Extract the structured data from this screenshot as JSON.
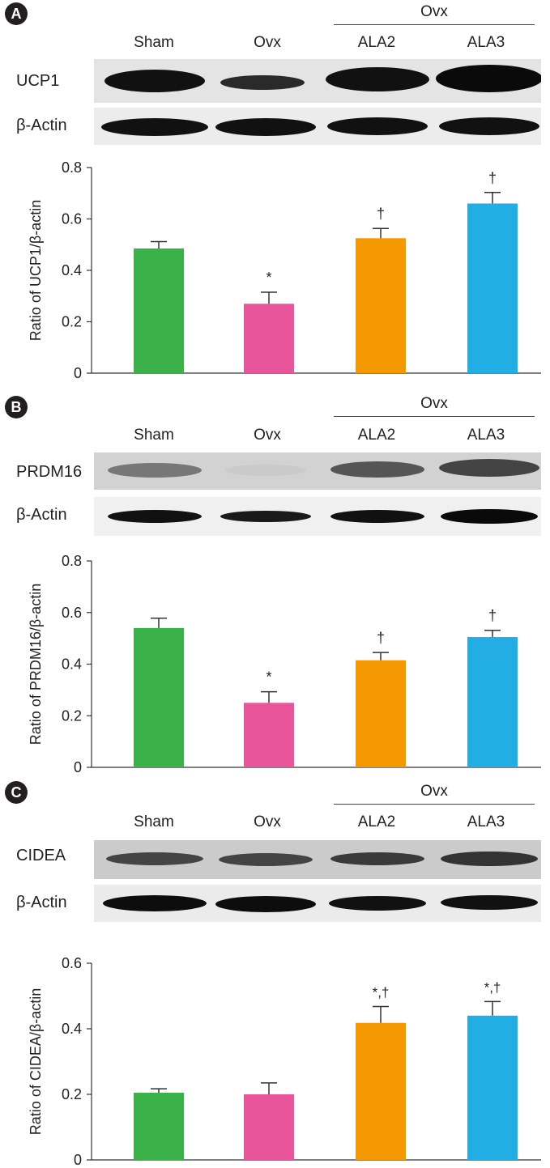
{
  "lanes": [
    "Sham",
    "Ovx",
    "ALA2",
    "ALA3"
  ],
  "ovx_group_label": "Ovx",
  "panels": [
    {
      "badge": "A",
      "blot_protein": "UCP1",
      "loading_control": "β-Actin",
      "ylabel": "Ratio of UCP1/β-actin"
    },
    {
      "badge": "B",
      "blot_protein": "PRDM16",
      "loading_control": "β-Actin",
      "ylabel": "Ratio of PRDM16/β-actin"
    },
    {
      "badge": "C",
      "blot_protein": "CIDEA",
      "loading_control": "β-Actin",
      "ylabel": "Ratio of CIDEA/β-actin"
    }
  ],
  "colors": {
    "sham": "#3bb14a",
    "ovx": "#e9559b",
    "ala2": "#f39800",
    "ala3": "#22aee5"
  },
  "chart_data": [
    {
      "type": "bar",
      "categories": [
        "Sham",
        "Ovx",
        "ALA2",
        "ALA3"
      ],
      "values": [
        0.485,
        0.27,
        0.525,
        0.66
      ],
      "errors": [
        0.027,
        0.045,
        0.038,
        0.043
      ],
      "annotations": [
        "",
        "*",
        "†",
        "†"
      ],
      "ylabel": "Ratio of UCP1/β-actin",
      "ylim": [
        0,
        0.8
      ],
      "yticks": [
        "0",
        "0.2",
        "0.4",
        "0.6",
        "0.8"
      ]
    },
    {
      "type": "bar",
      "categories": [
        "Sham",
        "Ovx",
        "ALA2",
        "ALA3"
      ],
      "values": [
        0.54,
        0.25,
        0.415,
        0.505
      ],
      "errors": [
        0.038,
        0.043,
        0.03,
        0.026
      ],
      "annotations": [
        "",
        "*",
        "†",
        "†"
      ],
      "ylabel": "Ratio of PRDM16/β-actin",
      "ylim": [
        0,
        0.8
      ],
      "yticks": [
        "0",
        "0.2",
        "0.4",
        "0.6",
        "0.8"
      ]
    },
    {
      "type": "bar",
      "categories": [
        "Sham",
        "Ovx",
        "ALA2",
        "ALA3"
      ],
      "values": [
        0.205,
        0.2,
        0.418,
        0.44
      ],
      "errors": [
        0.012,
        0.035,
        0.05,
        0.043
      ],
      "annotations": [
        "",
        "",
        "*,†",
        "*,†"
      ],
      "ylabel": "Ratio of CIDEA/β-actin",
      "ylim": [
        0,
        0.6
      ],
      "yticks": [
        "0",
        "0.2",
        "0.4",
        "0.6"
      ]
    }
  ]
}
